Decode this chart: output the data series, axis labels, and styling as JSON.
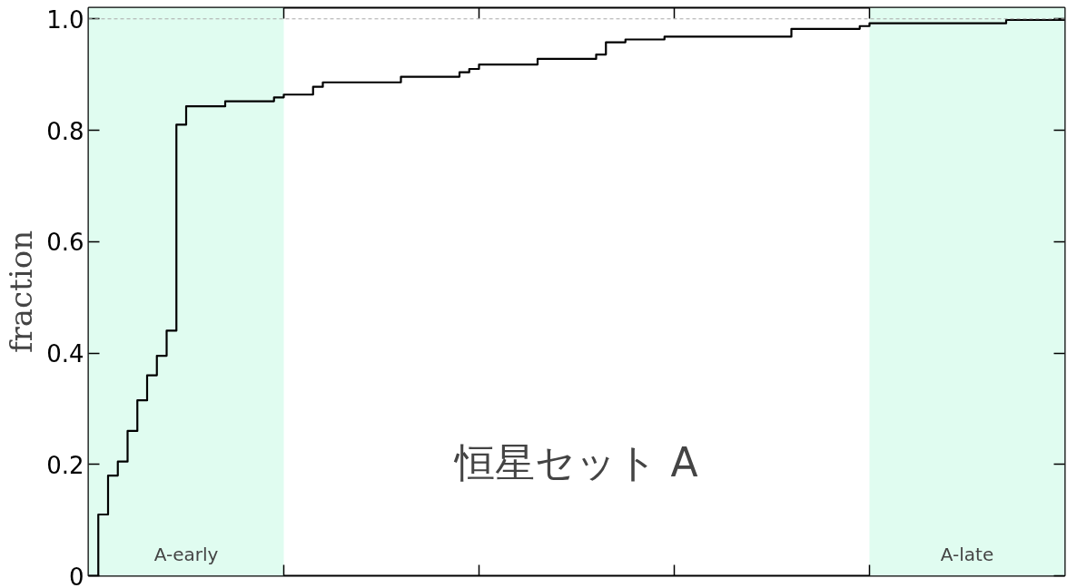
{
  "chart_data": {
    "type": "step",
    "ylabel": "fraction",
    "annotations": [
      "恒星セット A",
      "A-early",
      "A-late"
    ],
    "categories": [
      null,
      null,
      null,
      null,
      null,
      null,
      null,
      null,
      null,
      null,
      null,
      null,
      null,
      null,
      null,
      null,
      null,
      null,
      null,
      null,
      null,
      null,
      null,
      null,
      null,
      null,
      null,
      null,
      null,
      null,
      null,
      null,
      null,
      null,
      null,
      null,
      null,
      null,
      null,
      null,
      null,
      null,
      null,
      null,
      null,
      null,
      null,
      null,
      null,
      null,
      null,
      null,
      null,
      null,
      null,
      null,
      null,
      null,
      null,
      null,
      null,
      null,
      null,
      null,
      null,
      null,
      null,
      null,
      null,
      null,
      null,
      null,
      null,
      null,
      null,
      null,
      null,
      null,
      null,
      null,
      null,
      null,
      null,
      null,
      null,
      null,
      null,
      null,
      null,
      null,
      null,
      null,
      null,
      null,
      null,
      null,
      null,
      null,
      null,
      null,
      null
    ],
    "series": [
      {
        "color": "#000000",
        "values": [
          0.0,
          0.11,
          0.18,
          0.205,
          0.26,
          0.315,
          0.36,
          0.395,
          0.44,
          0.81,
          0.843,
          0.843,
          0.843,
          0.843,
          0.852,
          0.852,
          0.852,
          0.852,
          0.852,
          0.859,
          0.864,
          0.864,
          0.864,
          0.878,
          0.886,
          0.886,
          0.886,
          0.886,
          0.886,
          0.886,
          0.886,
          0.886,
          0.896,
          0.896,
          0.896,
          0.896,
          0.896,
          0.896,
          0.904,
          0.91,
          0.918,
          0.918,
          0.918,
          0.918,
          0.918,
          0.918,
          0.928,
          0.928,
          0.928,
          0.928,
          0.928,
          0.928,
          0.936,
          0.958,
          0.958,
          0.963,
          0.963,
          0.963,
          0.963,
          0.968,
          0.968,
          0.968,
          0.968,
          0.968,
          0.968,
          0.968,
          0.968,
          0.968,
          0.968,
          0.968,
          0.968,
          0.968,
          0.982,
          0.982,
          0.982,
          0.982,
          0.982,
          0.982,
          0.982,
          0.987,
          0.992,
          0.992,
          0.992,
          0.992,
          0.992,
          0.992,
          0.992,
          0.992,
          0.992,
          0.992,
          0.992,
          0.992,
          0.992,
          0.992,
          0.998,
          0.998,
          0.998,
          0.998,
          0.998,
          0.998,
          1.0
        ]
      }
    ],
    "ylim": [
      0,
      1.02
    ],
    "yticks": [
      0,
      0.2,
      0.4,
      0.6,
      0.8,
      {
        "value": 1.0,
        "label": "1.0"
      }
    ],
    "ref_lines": [
      {
        "axis": "y",
        "value": 1.0,
        "color": "#aaaaaa",
        "line_style": "dashed"
      }
    ],
    "grid": false,
    "line_style": "solid"
  }
}
